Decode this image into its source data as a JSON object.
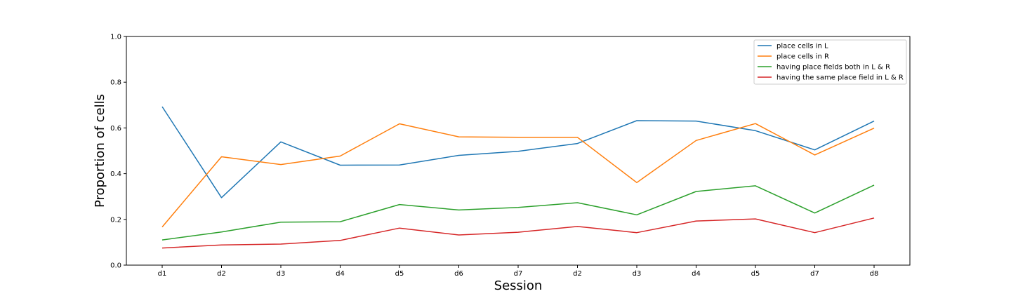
{
  "chart_data": {
    "type": "line",
    "title": "",
    "xlabel": "Session",
    "ylabel": "Proportion of cells",
    "categories": [
      "d1",
      "d2",
      "d3",
      "d4",
      "d5",
      "d6",
      "d7",
      "d2",
      "d3",
      "d4",
      "d5",
      "d7",
      "d8"
    ],
    "ylim": [
      0.0,
      1.0
    ],
    "yticks": [
      0.0,
      0.2,
      0.4,
      0.6,
      0.8,
      1.0
    ],
    "ytick_labels": [
      "0.0",
      "0.2",
      "0.4",
      "0.6",
      "0.8",
      "1.0"
    ],
    "grid": false,
    "legend_position": "top-right",
    "series": [
      {
        "name": "place cells in L",
        "color": "#1f77b4",
        "values": [
          0.693,
          0.295,
          0.539,
          0.437,
          0.438,
          0.48,
          0.498,
          0.532,
          0.632,
          0.63,
          0.588,
          0.504,
          0.63
        ]
      },
      {
        "name": "place cells in R",
        "color": "#ff7f0e",
        "values": [
          0.167,
          0.474,
          0.44,
          0.477,
          0.618,
          0.561,
          0.559,
          0.559,
          0.361,
          0.545,
          0.619,
          0.482,
          0.599
        ]
      },
      {
        "name": "having place fields both in L & R",
        "color": "#2ca02c",
        "values": [
          0.11,
          0.145,
          0.188,
          0.19,
          0.265,
          0.241,
          0.252,
          0.273,
          0.22,
          0.322,
          0.347,
          0.228,
          0.35
        ]
      },
      {
        "name": "having the same place field in L & R",
        "color": "#d62728",
        "values": [
          0.075,
          0.088,
          0.092,
          0.108,
          0.162,
          0.132,
          0.144,
          0.169,
          0.142,
          0.193,
          0.202,
          0.142,
          0.206
        ]
      }
    ]
  }
}
